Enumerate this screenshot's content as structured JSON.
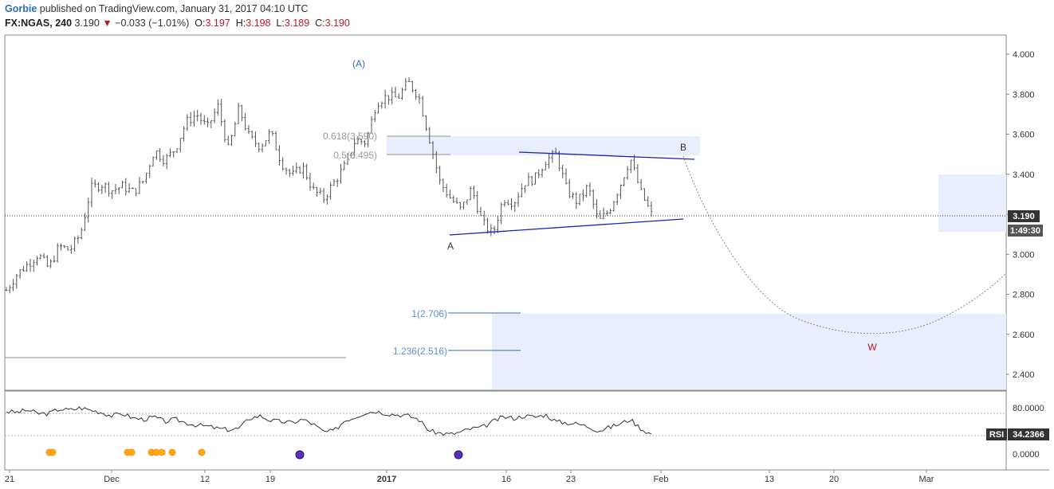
{
  "header": {
    "author": "Gorbie",
    "published": "published on TradingView.com, January 31, 2017 04:10 UTC",
    "symbol": "FX:NGAS, 240",
    "last": "3.190",
    "change": "−0.033 (−1.01%)",
    "o_label": "O:",
    "o": "3.197",
    "h_label": "H:",
    "h": "3.198",
    "l_label": "L:",
    "l": "3.189",
    "c_label": "C:",
    "c": "3.190"
  },
  "colors": {
    "candle": "#555555",
    "trendline": "#1c23b8",
    "zone": "#e8eefb",
    "fib_text": "#5a8fd6",
    "grey_text": "#9a9a9a",
    "wave_blue": "#2a6fc0",
    "wave_red": "#c0182a",
    "price_badge": "#333333",
    "rsi_dot_orange": "#ffae00",
    "rsi_dot_purple": "#5b2fb8"
  },
  "annotations": {
    "wave_A_top": "(A)",
    "wave_A": "A",
    "wave_B": "B",
    "wave_W": "W",
    "fib_0618": "0.618(3.590)",
    "fib_05": "0.5(3.495)",
    "fib_1": "1(2.706)",
    "fib_1236": "1.236(2.516)",
    "price_badge": "3.190",
    "countdown": "1:49:30",
    "rsi_label": "RSI",
    "rsi_value": "34.2366"
  },
  "chart_data": {
    "type": "candlestick",
    "instrument": "FX:NGAS",
    "timeframe": "240",
    "x_ticks": [
      "21",
      "Dec",
      "12",
      "19",
      "2017",
      "16",
      "23",
      "Feb",
      "13",
      "20",
      "Mar"
    ],
    "y_ticks": [
      "4.000",
      "3.800",
      "3.600",
      "3.400",
      "3.200",
      "3.000",
      "2.800",
      "2.600",
      "2.400"
    ],
    "ylim": [
      2.32,
      4.08
    ],
    "closes": [
      2.82,
      2.9,
      2.95,
      3.0,
      2.93,
      3.04,
      3.02,
      3.1,
      3.33,
      3.35,
      3.32,
      3.34,
      3.31,
      3.37,
      3.52,
      3.47,
      3.53,
      3.66,
      3.7,
      3.63,
      3.74,
      3.52,
      3.73,
      3.58,
      3.54,
      3.61,
      3.46,
      3.39,
      3.44,
      3.32,
      3.28,
      3.36,
      3.44,
      3.57,
      3.56,
      3.76,
      3.79,
      3.78,
      3.86,
      3.79,
      3.58,
      3.36,
      3.28,
      3.22,
      3.33,
      3.16,
      3.1,
      3.28,
      3.26,
      3.36,
      3.38,
      3.47,
      3.5,
      3.32,
      3.26,
      3.34,
      3.16,
      3.22,
      3.34,
      3.48,
      3.31,
      3.2
    ],
    "trendlines": [
      {
        "from": [
          "2017-01-09",
          3.095
        ],
        "to": [
          "2017-02-05",
          3.18
        ]
      },
      {
        "from": [
          "2017-01-17",
          3.51
        ],
        "to": [
          "2017-02-05",
          3.475
        ]
      }
    ],
    "fib_levels": [
      {
        "label": "0.618(3.590)",
        "value": 3.59
      },
      {
        "label": "0.5(3.495)",
        "value": 3.495
      },
      {
        "label": "1(2.706)",
        "value": 2.706
      },
      {
        "label": "1.236(2.516)",
        "value": 2.516
      }
    ],
    "current_price": 3.19,
    "rsi": {
      "y_ticks": [
        "80.0000",
        "0.0000"
      ],
      "value": 34.2366,
      "values": [
        74,
        72,
        76,
        70,
        70,
        78,
        76,
        80,
        76,
        72,
        66,
        70,
        62,
        60,
        64,
        56,
        60,
        54,
        50,
        48,
        44,
        42,
        44,
        62,
        66,
        58,
        56,
        54,
        60,
        52,
        38,
        40,
        58,
        64,
        72,
        74,
        70,
        68,
        66,
        60,
        40,
        36,
        34,
        38,
        44,
        46,
        56,
        64,
        62,
        66,
        64,
        68,
        56,
        54,
        52,
        48,
        40,
        46,
        52,
        60,
        44,
        34
      ]
    }
  }
}
